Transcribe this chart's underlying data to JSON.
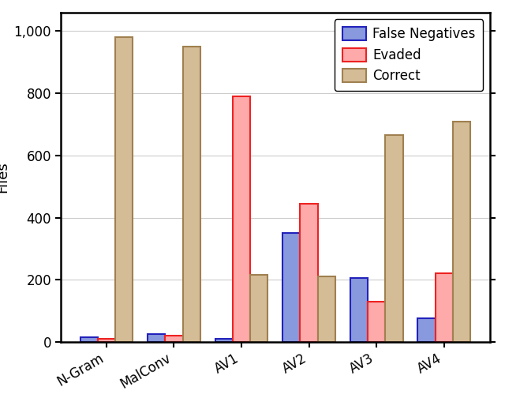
{
  "categories": [
    "N-Gram",
    "MalConv",
    "AV1",
    "AV2",
    "AV3",
    "AV4"
  ],
  "false_negatives": [
    15,
    25,
    10,
    350,
    205,
    75
  ],
  "evaded": [
    10,
    20,
    790,
    445,
    130,
    220
  ],
  "correct": [
    980,
    950,
    215,
    210,
    665,
    710
  ],
  "fn_color": "#8899dd",
  "fn_edge_color": "#2222bb",
  "evaded_color": "#ffaaaa",
  "evaded_edge_color": "#ee2222",
  "correct_color": "#d4bc96",
  "correct_edge_color": "#a08050",
  "ylabel": "Files",
  "ylim": [
    0,
    1060
  ],
  "yticks": [
    0,
    200,
    400,
    600,
    800,
    1000
  ],
  "ytick_labels": [
    "0",
    "200",
    "400",
    "600",
    "800",
    "1,000"
  ],
  "bar_width": 0.26,
  "legend_labels": [
    "False Negatives",
    "Evaded",
    "Correct"
  ],
  "background_color": "#ffffff",
  "grid_color": "#cccccc",
  "tick_fontsize": 12,
  "label_fontsize": 13,
  "legend_fontsize": 12
}
